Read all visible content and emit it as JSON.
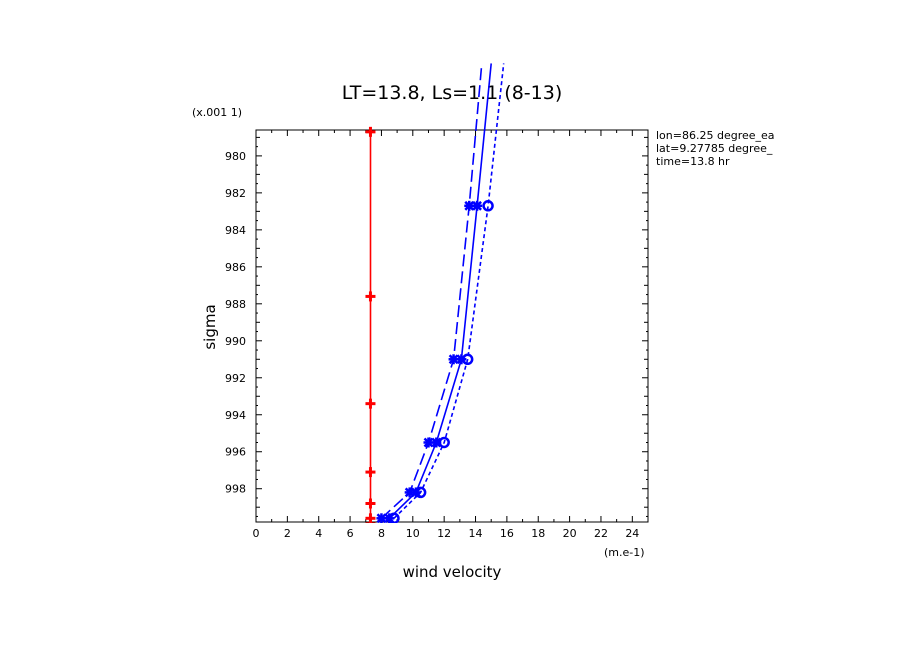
{
  "chart_data": {
    "type": "line",
    "title": "LT=13.8, Ls=1.1 (8-13)",
    "xlabel": "wind velocity",
    "ylabel": "sigma",
    "x_unit": "(m.e-1)",
    "y_unit": "(x.001 1)",
    "xlim": [
      0,
      25
    ],
    "ylim": [
      999.8,
      978.6
    ],
    "y_inverted": true,
    "x_ticks": [
      "0",
      "2",
      "4",
      "6",
      "8",
      "10",
      "12",
      "14",
      "16",
      "18",
      "20",
      "22",
      "24"
    ],
    "y_ticks": [
      "980",
      "982",
      "984",
      "986",
      "988",
      "990",
      "992",
      "994",
      "996",
      "998"
    ],
    "annotations": [
      "lon=86.25 degree_ea",
      "lat=9.27785 degree_",
      "time=13.8 hr"
    ],
    "series": [
      {
        "color": "#ff0000",
        "dash": "solid",
        "marker": "plus",
        "x": [
          7.3,
          7.3,
          7.3,
          7.3,
          7.3,
          7.3,
          7.3
        ],
        "y": [
          978.7,
          987.6,
          993.4,
          997.1,
          998.8,
          999.6,
          999.9
        ]
      },
      {
        "color": "#0000ff",
        "dash": "solid",
        "marker": "asterisk",
        "x": [
          8.5,
          10.2,
          11.5,
          13.1,
          14.1,
          15.0
        ],
        "y": [
          999.6,
          998.2,
          995.5,
          991.0,
          982.7,
          975.0
        ]
      },
      {
        "color": "#0000ff",
        "dash": "longdash",
        "marker": "asterisk",
        "x": [
          8.0,
          9.8,
          11.0,
          12.6,
          13.6,
          14.4
        ],
        "y": [
          999.6,
          998.2,
          995.5,
          991.0,
          982.7,
          975.0
        ]
      },
      {
        "color": "#0000ff",
        "dash": "shortdash",
        "marker": "circle",
        "x": [
          8.8,
          10.5,
          12.0,
          13.5,
          14.8,
          15.8
        ],
        "y": [
          999.6,
          998.2,
          995.5,
          991.0,
          982.7,
          975.0
        ]
      }
    ]
  }
}
